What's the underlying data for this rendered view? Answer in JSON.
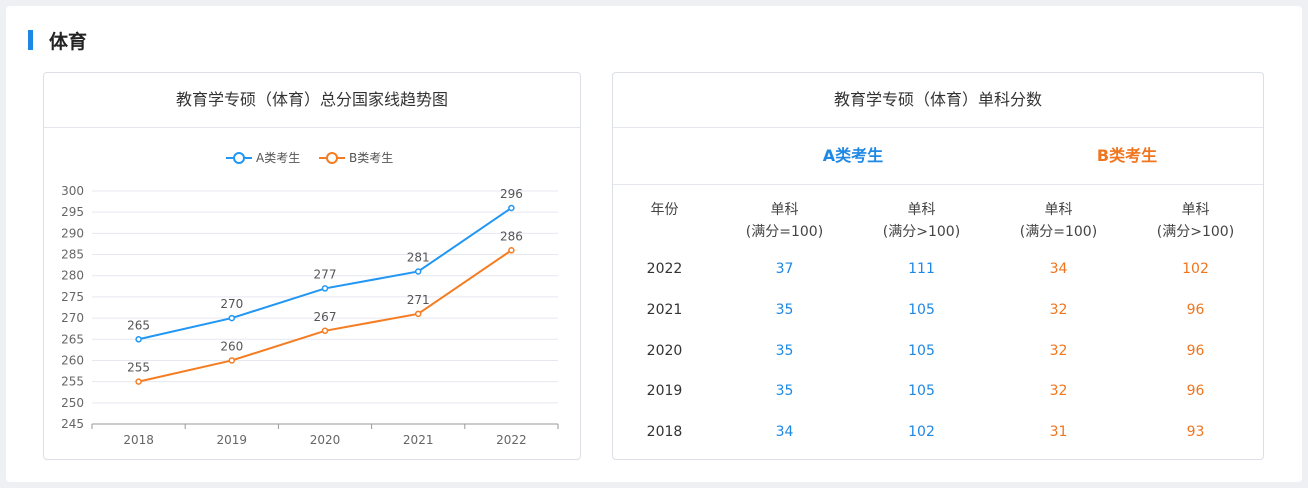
{
  "section": {
    "title": "体育"
  },
  "left_card": {
    "title": "教育学专硕（体育）总分国家线趋势图"
  },
  "right_card": {
    "title": "教育学专硕（体育）单科分数",
    "group_a": "A类考生",
    "group_b": "B类考生",
    "headers": {
      "year": "年份",
      "single_line1": "单科",
      "full100": "(满分=100)",
      "full_gt100": "(满分>100)"
    },
    "rows": [
      {
        "year": "2022",
        "a_100": "37",
        "a_gt100": "111",
        "b_100": "34",
        "b_gt100": "102"
      },
      {
        "year": "2021",
        "a_100": "35",
        "a_gt100": "105",
        "b_100": "32",
        "b_gt100": "96"
      },
      {
        "year": "2020",
        "a_100": "35",
        "a_gt100": "105",
        "b_100": "32",
        "b_gt100": "96"
      },
      {
        "year": "2019",
        "a_100": "35",
        "a_gt100": "105",
        "b_100": "32",
        "b_gt100": "96"
      },
      {
        "year": "2018",
        "a_100": "34",
        "a_gt100": "102",
        "b_100": "31",
        "b_gt100": "93"
      }
    ]
  },
  "colors": {
    "accent_blue": "#1e88e5",
    "accent_orange": "#f0751f",
    "series_a": "#2196f3",
    "series_b": "#f57c20"
  },
  "chart_data": {
    "type": "line",
    "categories": [
      "2018",
      "2019",
      "2020",
      "2021",
      "2022"
    ],
    "series": [
      {
        "name": "A类考生",
        "values": [
          265,
          270,
          277,
          281,
          296
        ]
      },
      {
        "name": "B类考生",
        "values": [
          255,
          260,
          267,
          271,
          286
        ]
      }
    ],
    "ylim": [
      245,
      300
    ],
    "yticks": [
      "245",
      "250",
      "255",
      "260",
      "265",
      "270",
      "275",
      "280",
      "285",
      "290",
      "295",
      "300"
    ],
    "grid": true,
    "legend_position": "top-center",
    "data_labels": true
  }
}
